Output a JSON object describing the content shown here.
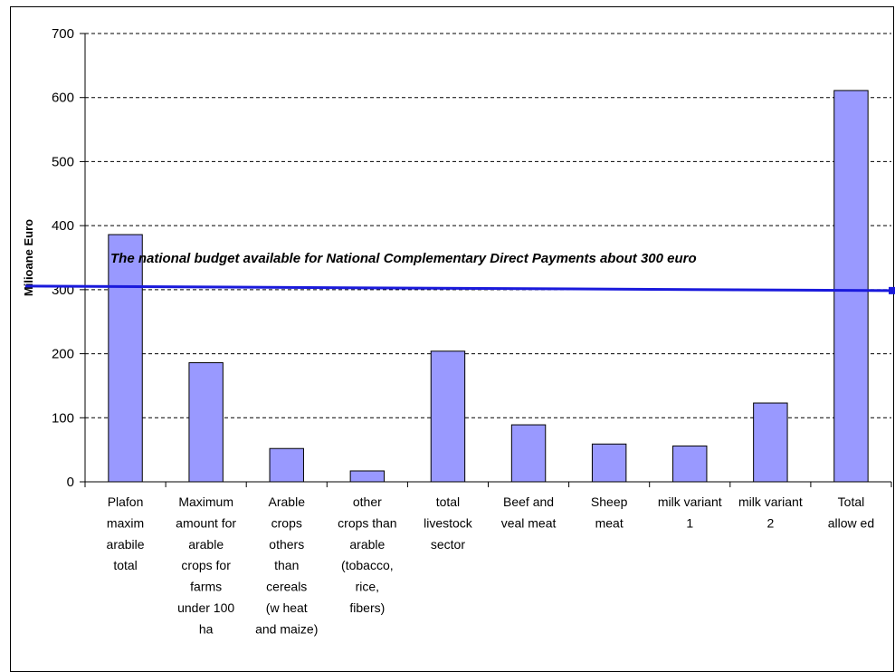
{
  "chart_data": {
    "type": "bar",
    "title": "",
    "xlabel": "",
    "ylabel": "Milioane Euro",
    "ylim": [
      0,
      700
    ],
    "yticks": [
      "0",
      "100",
      "200",
      "300",
      "400",
      "500",
      "600",
      "700"
    ],
    "grid": true,
    "legend": "none",
    "categories": [
      [
        "Plafon",
        "maxim",
        "arabile",
        "total"
      ],
      [
        "Maximum",
        "amount for",
        "arable",
        "crops for",
        "farms",
        "under 100",
        "ha"
      ],
      [
        "Arable",
        "crops",
        "others",
        "than",
        "cereals",
        "(w heat",
        "and maize)"
      ],
      [
        "other",
        "crops than",
        "arable",
        "(tobacco,",
        "rice,",
        "fibers)"
      ],
      [
        "total",
        "livestock",
        "sector"
      ],
      [
        "Beef and",
        "veal meat"
      ],
      [
        "Sheep",
        "meat"
      ],
      [
        "milk variant",
        "1"
      ],
      [
        "milk variant",
        "2"
      ],
      [
        "Total",
        "allow ed"
      ]
    ],
    "values": [
      386,
      186,
      52,
      17,
      204,
      89,
      59,
      56,
      123,
      611
    ],
    "reference_line": {
      "value": 300,
      "label": "The national budget available for National Complementary Direct Payments about 300 euro"
    },
    "colors": {
      "bar_fill": "#9999ff",
      "bar_stroke": "#000000",
      "reference_line": "#1a1adc",
      "grid": "#000000"
    }
  }
}
